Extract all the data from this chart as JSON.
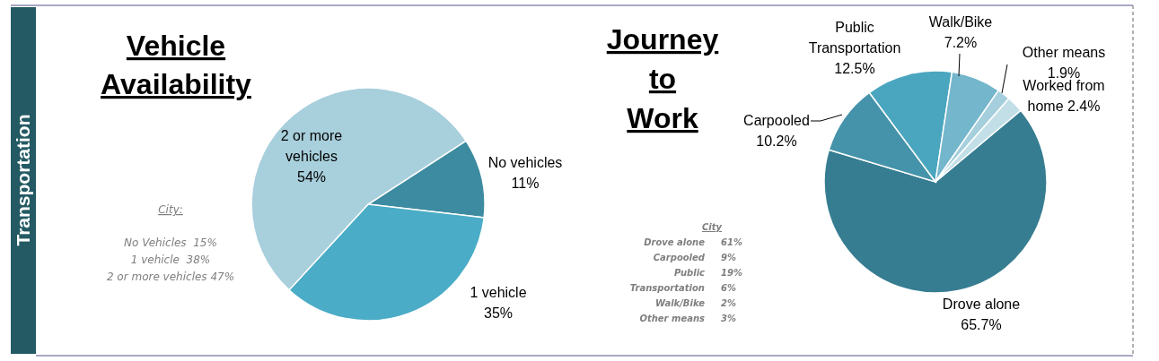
{
  "chart_data": [
    {
      "type": "pie",
      "title": "Vehicle Availability",
      "categories": [
        "No vehicles",
        "1 vehicle",
        "2 or more vehicles"
      ],
      "values": [
        11,
        35,
        54
      ],
      "value_labels": [
        "11%",
        "35%",
        "54%"
      ],
      "colors": [
        "#3d8ba0",
        "#4aacc6",
        "#a8cfdc"
      ],
      "annotations": [
        "Transportation",
        "City:",
        "No Vehicles  15%",
        "1 vehicle  38%",
        "2 or more vehicles 47%"
      ]
    },
    {
      "type": "pie",
      "title": "Journey to Work",
      "categories": [
        "Drove alone",
        "Carpooled",
        "Public Transportation",
        "Walk/Bike",
        "Other means",
        "Worked from home"
      ],
      "values": [
        65.7,
        10.2,
        12.5,
        7.2,
        1.9,
        2.4
      ],
      "value_labels": [
        "65.7%",
        "10.2%",
        "12.5%",
        "7.2%",
        "1.9%",
        "2.4%"
      ],
      "colors": [
        "#367d91",
        "#4593aa",
        "#4aa6bf",
        "#74b6cc",
        "#a5cfdc",
        "#c2dfe7"
      ],
      "annotations": [
        "City",
        "Drove alone",
        "61%",
        "Carpooled",
        "9%",
        "Public",
        "19%",
        "Transportation",
        "6%",
        "Walk/Bike",
        "2%",
        "Other means",
        "3%"
      ]
    }
  ]
}
